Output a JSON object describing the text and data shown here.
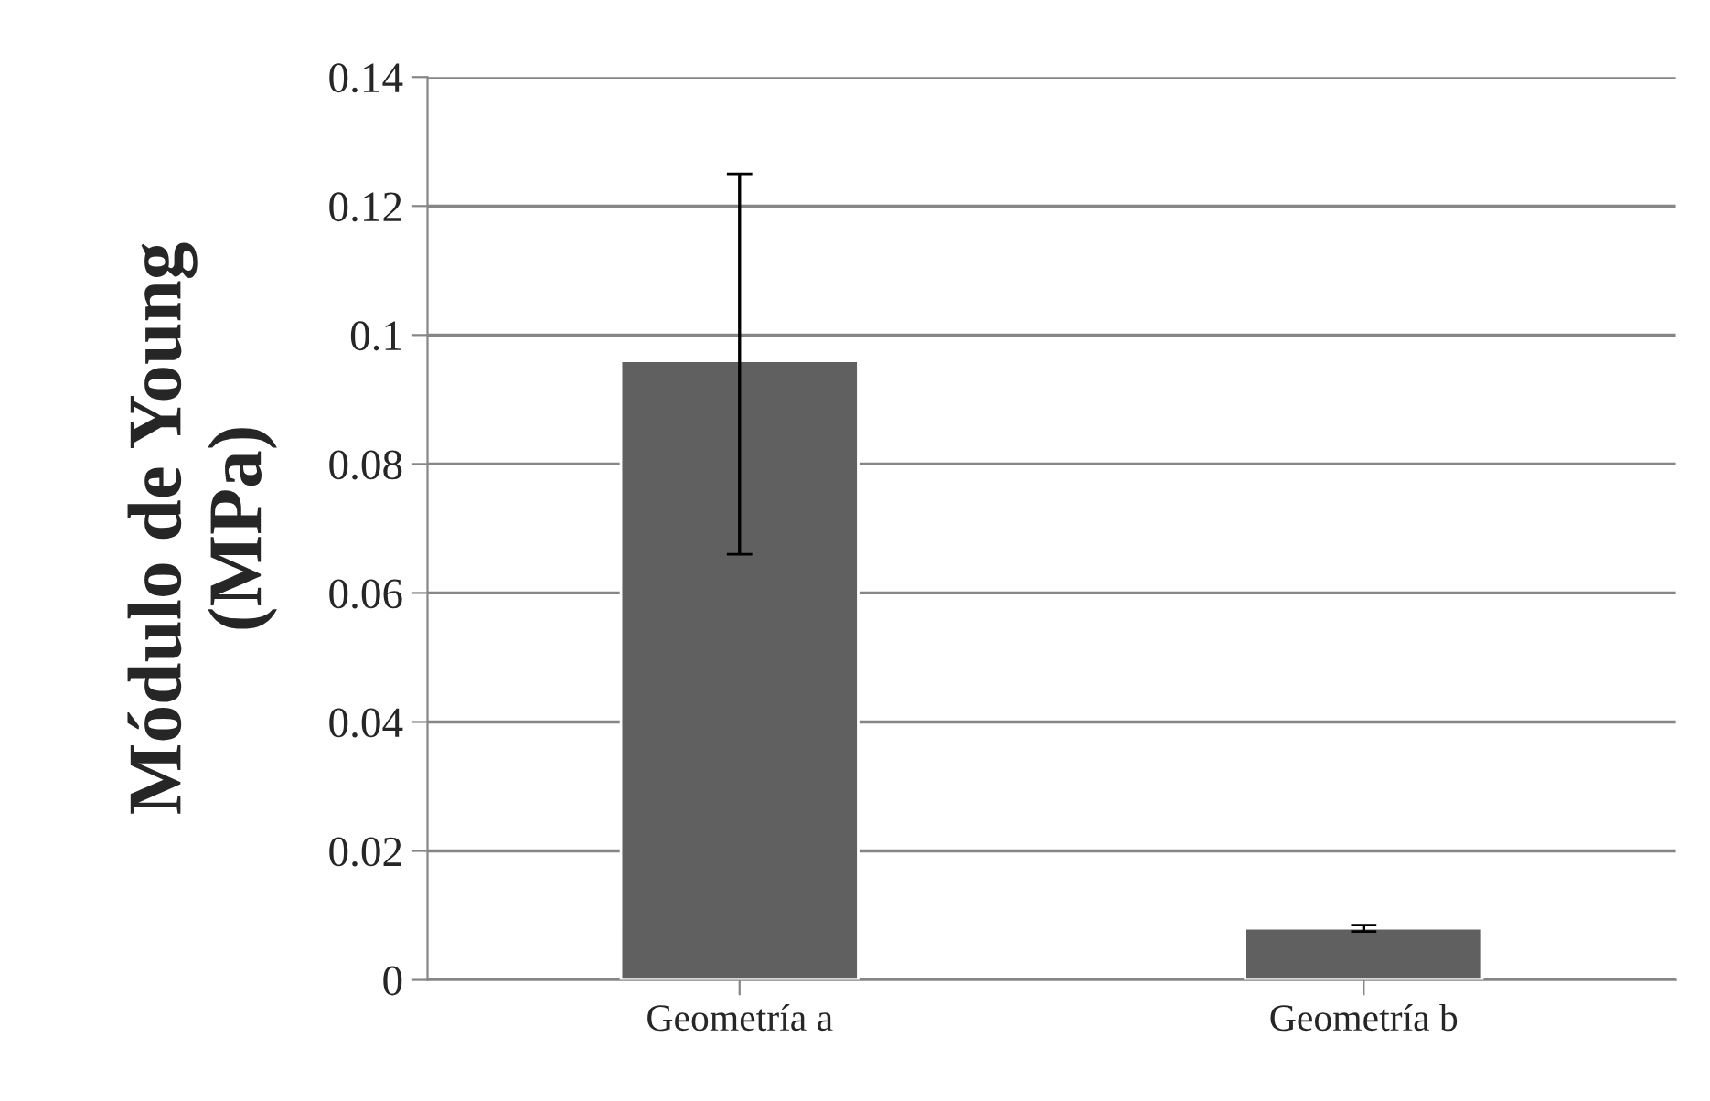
{
  "chart_data": {
    "type": "bar",
    "ylabel": "Módulo de Young\n(MPa)",
    "categories": [
      "Geometría a",
      "Geometría b"
    ],
    "values": [
      0.096,
      0.008
    ],
    "errors": [
      [
        0.066,
        0.125
      ],
      [
        0.0075,
        0.0085
      ]
    ],
    "color": "#606060",
    "ylim": [
      0,
      0.14
    ],
    "yticks": [
      0,
      0.02,
      0.04,
      0.06,
      0.08,
      0.1,
      0.12,
      0.14
    ],
    "grid": "y",
    "legend": false
  }
}
